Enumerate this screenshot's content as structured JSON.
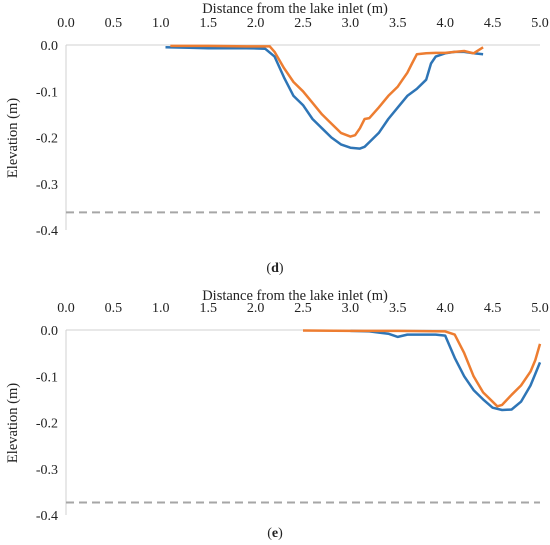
{
  "chart_data": [
    {
      "type": "line",
      "panel_label": "d",
      "xlabel": "Distance from the lake inlet (m)",
      "ylabel": "Elevation (m)",
      "xlim": [
        0.0,
        5.0
      ],
      "ylim": [
        -0.4,
        0.0
      ],
      "x_ticks": [
        "0.0",
        "0.5",
        "1.0",
        "1.5",
        "2.0",
        "2.5",
        "3.0",
        "3.5",
        "4.0",
        "4.5",
        "5.0"
      ],
      "y_ticks": [
        "0.0",
        "-0.1",
        "-0.2",
        "-0.3",
        "-0.4"
      ],
      "grid": false,
      "reference_line": {
        "y": -0.362,
        "color": "#a6a6a6",
        "style": "dashed"
      },
      "series": [
        {
          "color": "#2e75b6",
          "x": [
            1.05,
            1.3,
            1.5,
            1.7,
            1.9,
            2.1,
            2.2,
            2.3,
            2.4,
            2.5,
            2.6,
            2.7,
            2.8,
            2.9,
            3.0,
            3.1,
            3.15,
            3.2,
            3.3,
            3.4,
            3.5,
            3.6,
            3.7,
            3.8,
            3.85,
            3.9,
            4.0,
            4.1,
            4.2,
            4.3,
            4.4
          ],
          "y": [
            -0.005,
            -0.006,
            -0.007,
            -0.007,
            -0.007,
            -0.008,
            -0.025,
            -0.07,
            -0.11,
            -0.13,
            -0.16,
            -0.18,
            -0.2,
            -0.215,
            -0.222,
            -0.224,
            -0.22,
            -0.21,
            -0.19,
            -0.16,
            -0.135,
            -0.11,
            -0.095,
            -0.075,
            -0.04,
            -0.025,
            -0.018,
            -0.015,
            -0.015,
            -0.018,
            -0.02
          ]
        },
        {
          "color": "#ed7d31",
          "x": [
            1.1,
            1.5,
            1.9,
            2.15,
            2.2,
            2.3,
            2.4,
            2.5,
            2.6,
            2.7,
            2.8,
            2.9,
            3.0,
            3.05,
            3.1,
            3.15,
            3.2,
            3.3,
            3.4,
            3.5,
            3.55,
            3.6,
            3.65,
            3.7,
            3.8,
            3.9,
            4.0,
            4.1,
            4.2,
            4.3,
            4.4
          ],
          "y": [
            -0.002,
            -0.002,
            -0.003,
            -0.003,
            -0.015,
            -0.05,
            -0.08,
            -0.1,
            -0.125,
            -0.15,
            -0.17,
            -0.19,
            -0.198,
            -0.195,
            -0.18,
            -0.16,
            -0.158,
            -0.135,
            -0.11,
            -0.09,
            -0.075,
            -0.06,
            -0.04,
            -0.02,
            -0.018,
            -0.017,
            -0.017,
            -0.015,
            -0.013,
            -0.018,
            -0.005
          ]
        }
      ]
    },
    {
      "type": "line",
      "panel_label": "e",
      "xlabel": "Distance from the lake inlet (m)",
      "ylabel": "Elevation (m)",
      "xlim": [
        0.0,
        5.0
      ],
      "ylim": [
        -0.4,
        0.0
      ],
      "x_ticks": [
        "0.0",
        "0.5",
        "1.0",
        "1.5",
        "2.0",
        "2.5",
        "3.0",
        "3.5",
        "4.0",
        "4.5",
        "5.0"
      ],
      "y_ticks": [
        "0.0",
        "-0.1",
        "-0.2",
        "-0.3",
        "-0.4"
      ],
      "grid": false,
      "reference_line": {
        "y": -0.373,
        "color": "#a6a6a6",
        "style": "dashed"
      },
      "series": [
        {
          "color": "#2e75b6",
          "x": [
            3.0,
            3.2,
            3.4,
            3.5,
            3.6,
            3.7,
            3.8,
            3.9,
            4.0,
            4.1,
            4.2,
            4.3,
            4.4,
            4.5,
            4.6,
            4.7,
            4.8,
            4.9,
            4.95,
            5.0
          ],
          "y": [
            -0.002,
            -0.003,
            -0.008,
            -0.015,
            -0.01,
            -0.01,
            -0.01,
            -0.01,
            -0.012,
            -0.06,
            -0.1,
            -0.13,
            -0.15,
            -0.168,
            -0.173,
            -0.172,
            -0.155,
            -0.12,
            -0.095,
            -0.07
          ]
        },
        {
          "color": "#ed7d31",
          "x": [
            2.5,
            3.0,
            3.5,
            4.0,
            4.1,
            4.2,
            4.3,
            4.4,
            4.5,
            4.55,
            4.6,
            4.7,
            4.8,
            4.9,
            4.95,
            5.0
          ],
          "y": [
            -0.001,
            -0.002,
            -0.002,
            -0.003,
            -0.01,
            -0.05,
            -0.1,
            -0.135,
            -0.155,
            -0.165,
            -0.162,
            -0.14,
            -0.12,
            -0.09,
            -0.065,
            -0.03
          ]
        }
      ]
    }
  ]
}
